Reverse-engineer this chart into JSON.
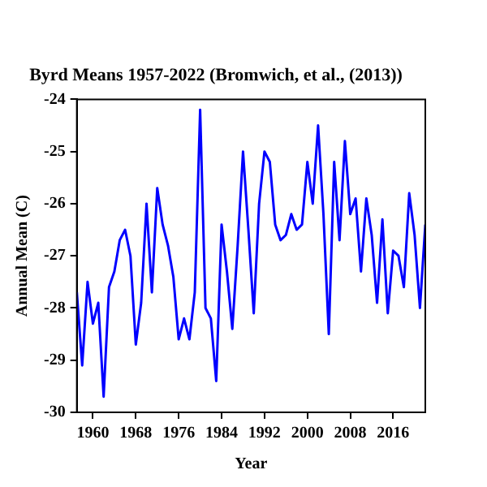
{
  "chart_data": {
    "type": "line",
    "title": "Byrd Means 1957-2022 (Bromwich, et al., (2013))",
    "xlabel": "Year",
    "ylabel": "Annual Mean (C)",
    "x": [
      1957,
      1958,
      1959,
      1960,
      1961,
      1962,
      1963,
      1964,
      1965,
      1966,
      1967,
      1968,
      1969,
      1970,
      1971,
      1972,
      1973,
      1974,
      1975,
      1976,
      1977,
      1978,
      1979,
      1980,
      1981,
      1982,
      1983,
      1984,
      1985,
      1986,
      1987,
      1988,
      1989,
      1990,
      1991,
      1992,
      1993,
      1994,
      1995,
      1996,
      1997,
      1998,
      1999,
      2000,
      2001,
      2002,
      2003,
      2004,
      2005,
      2006,
      2007,
      2008,
      2009,
      2010,
      2011,
      2012,
      2013,
      2014,
      2015,
      2016,
      2017,
      2018,
      2019,
      2020,
      2021,
      2022
    ],
    "series": [
      {
        "color": "#0000ff",
        "values": [
          -27.7,
          -29.1,
          -27.5,
          -28.3,
          -27.9,
          -29.7,
          -27.6,
          -27.3,
          -26.7,
          -26.5,
          -27.0,
          -28.7,
          -27.9,
          -26.0,
          -27.7,
          -25.7,
          -26.4,
          -26.8,
          -27.4,
          -28.6,
          -28.2,
          -28.6,
          -27.7,
          -24.2,
          -28.0,
          -28.2,
          -29.4,
          -26.4,
          -27.3,
          -28.4,
          -26.8,
          -25.0,
          -26.5,
          -28.1,
          -26.0,
          -25.0,
          -25.2,
          -26.4,
          -26.7,
          -26.6,
          -26.2,
          -26.5,
          -26.4,
          -25.2,
          -26.0,
          -24.5,
          -26.2,
          -28.5,
          -25.2,
          -26.7,
          -24.8,
          -26.2,
          -25.9,
          -27.3,
          -25.9,
          -26.6,
          -27.9,
          -26.3,
          -28.1,
          -26.9,
          -27.0,
          -27.6,
          -25.8,
          -26.6,
          -28.0,
          -26.4
        ]
      }
    ],
    "xlim": [
      1957,
      2022
    ],
    "xticks": [
      1960,
      1968,
      1976,
      1984,
      1992,
      2000,
      2008,
      2016
    ],
    "ylim": [
      -30,
      -24
    ],
    "yticks": [
      -30,
      -29,
      -28,
      -27,
      -26,
      -25,
      -24
    ],
    "grid": false,
    "legend": false,
    "marker": "none",
    "line_style": "solid"
  }
}
